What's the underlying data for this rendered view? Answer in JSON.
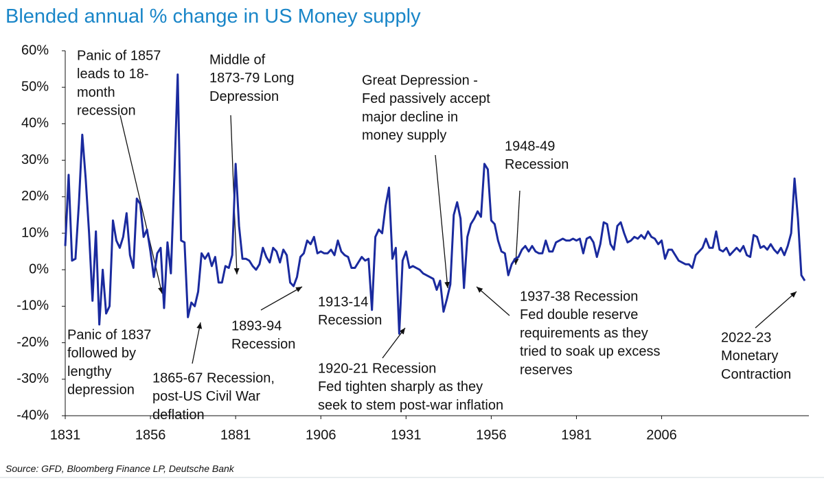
{
  "chart_data": {
    "type": "line",
    "title": "Blended annual % change in US Money supply",
    "source": "Source: GFD, Bloomberg Finance LP, Deutsche Bank",
    "categories": [
      "1831",
      null,
      null,
      null,
      null,
      null,
      null,
      null,
      null,
      null,
      null,
      null,
      null,
      null,
      null,
      null,
      null,
      null,
      null,
      null,
      null,
      null,
      null,
      null,
      null,
      "1856",
      null,
      null,
      null,
      null,
      null,
      null,
      null,
      null,
      null,
      null,
      null,
      null,
      null,
      null,
      null,
      null,
      null,
      null,
      null,
      null,
      null,
      null,
      null,
      null,
      "1881",
      null,
      null,
      null,
      null,
      null,
      null,
      null,
      null,
      null,
      null,
      null,
      null,
      null,
      null,
      null,
      null,
      null,
      null,
      null,
      null,
      null,
      null,
      null,
      null,
      "1906",
      null,
      null,
      null,
      null,
      null,
      null,
      null,
      null,
      null,
      null,
      null,
      null,
      null,
      null,
      null,
      null,
      null,
      null,
      null,
      null,
      null,
      null,
      null,
      null,
      "1931",
      null,
      null,
      null,
      null,
      null,
      null,
      null,
      null,
      null,
      null,
      null,
      null,
      null,
      null,
      null,
      null,
      null,
      null,
      null,
      null,
      null,
      null,
      null,
      null,
      "1956",
      null,
      null,
      null,
      null,
      null,
      null,
      null,
      null,
      null,
      null,
      null,
      null,
      null,
      null,
      null,
      null,
      null,
      null,
      null,
      null,
      null,
      null,
      null,
      null,
      "1981",
      null,
      null,
      null,
      null,
      null,
      null,
      null,
      null,
      null,
      null,
      null,
      null,
      null,
      null,
      null,
      null,
      null,
      null,
      null,
      null,
      null,
      null,
      null,
      null,
      "2006",
      null,
      null,
      null,
      null,
      null,
      null,
      null,
      null,
      null,
      null,
      null,
      null,
      null,
      null,
      null,
      null,
      null,
      null,
      null,
      null,
      null,
      null,
      null,
      null,
      null,
      null,
      null,
      null,
      null,
      null,
      null,
      null,
      null,
      null,
      null,
      null,
      null,
      null,
      null,
      null,
      null,
      null
    ],
    "series": [
      {
        "color": "#1a2a9e",
        "values": [
          6.5,
          26,
          2.5,
          3,
          18,
          37,
          25,
          10,
          -8.5,
          10.5,
          -15,
          0,
          -12,
          -10,
          13.5,
          8,
          6,
          9,
          15.5,
          4,
          0.5,
          19.5,
          18,
          9,
          11,
          5,
          -2,
          4.5,
          6,
          -10.5,
          7.5,
          -1,
          25,
          53.5,
          8,
          7.5,
          -13,
          -9,
          -10,
          -6,
          4.5,
          3,
          4.5,
          1,
          3.5,
          -3.5,
          -3.5,
          1,
          0.5,
          4,
          29,
          12,
          3,
          3,
          2.5,
          1,
          0,
          1.5,
          6,
          3.5,
          2,
          6,
          5,
          2,
          5.5,
          4,
          -3.5,
          -4.5,
          -2,
          3.5,
          4.5,
          8,
          7,
          9,
          4.5,
          5,
          4.5,
          4.5,
          5.5,
          4,
          8,
          5,
          4,
          3.5,
          0.5,
          0.5,
          2,
          3.5,
          2.5,
          3,
          -11,
          9,
          11,
          10,
          17.5,
          22.5,
          3,
          6,
          -17.5,
          2.5,
          5,
          0.5,
          1,
          0.5,
          0,
          -1,
          -1.5,
          -2,
          -2.5,
          -5.5,
          -3,
          -11.5,
          -8,
          -4,
          15,
          18.5,
          14,
          -5,
          9,
          12.5,
          14,
          16,
          14.5,
          29,
          27.5,
          13.5,
          12.5,
          8,
          5,
          4.5,
          -1.5,
          1.5,
          3,
          3.5,
          5.5,
          6.5,
          5,
          6.5,
          5,
          4.5,
          4.5,
          8,
          5,
          5,
          7.5,
          8,
          8.5,
          8,
          8,
          8.5,
          8,
          8.5,
          4.5,
          8.5,
          9,
          7.5,
          3.5,
          7,
          13,
          12.5,
          7,
          5.5,
          12,
          13,
          10,
          7.5,
          8,
          9,
          8.5,
          9.5,
          8.5,
          10.5,
          9,
          8.5,
          7,
          8,
          3,
          5.5,
          5.5,
          4,
          2.5,
          2,
          1.5,
          1.5,
          0.5,
          4,
          5,
          6,
          8.5,
          6,
          6,
          10.5,
          5.5,
          5,
          6,
          4,
          5,
          6,
          5,
          6.5,
          4,
          3.5,
          9.5,
          9,
          6,
          6.5,
          5.5,
          7,
          5.5,
          4.5,
          6,
          4,
          6.5,
          10,
          25,
          14,
          -1.5,
          -3
        ]
      }
    ],
    "ylim": [
      -40,
      60
    ],
    "yticks": [
      {
        "value": -40,
        "label": "-40%"
      },
      {
        "value": -30,
        "label": "-30%"
      },
      {
        "value": -20,
        "label": "-20%"
      },
      {
        "value": -10,
        "label": "-10%"
      },
      {
        "value": 0,
        "label": "0%"
      },
      {
        "value": 10,
        "label": "10%"
      },
      {
        "value": 20,
        "label": "20%"
      },
      {
        "value": 30,
        "label": "30%"
      },
      {
        "value": 40,
        "label": "40%"
      },
      {
        "value": 50,
        "label": "50%"
      },
      {
        "value": 60,
        "label": "60%"
      }
    ],
    "grid": false,
    "annotations": [
      [
        "Panic of 1857",
        "leads to 18-",
        "month",
        "recession"
      ],
      [
        "Middle of",
        "1873-79 Long",
        "Depression"
      ],
      [
        "Great Depression -",
        "Fed passively accept",
        "major decline in",
        "money supply"
      ],
      [
        "1948-49",
        "Recession"
      ],
      [
        "Panic of 1837",
        "followed by",
        "lengthy",
        "depression"
      ],
      [
        "1865-67 Recession,",
        "post-US Civil War",
        "deflation"
      ],
      [
        "1893-94",
        "Recession"
      ],
      [
        "1913-14",
        "Recession"
      ],
      [
        "1920-21 Recession",
        "Fed tighten sharply as they",
        "seek to stem post-war inflation"
      ],
      [
        "1937-38 Recession",
        "Fed double reserve",
        "requirements as they",
        "tried to soak up excess",
        "reserves"
      ],
      [
        "2022-23",
        "Monetary",
        "Contraction"
      ]
    ]
  }
}
